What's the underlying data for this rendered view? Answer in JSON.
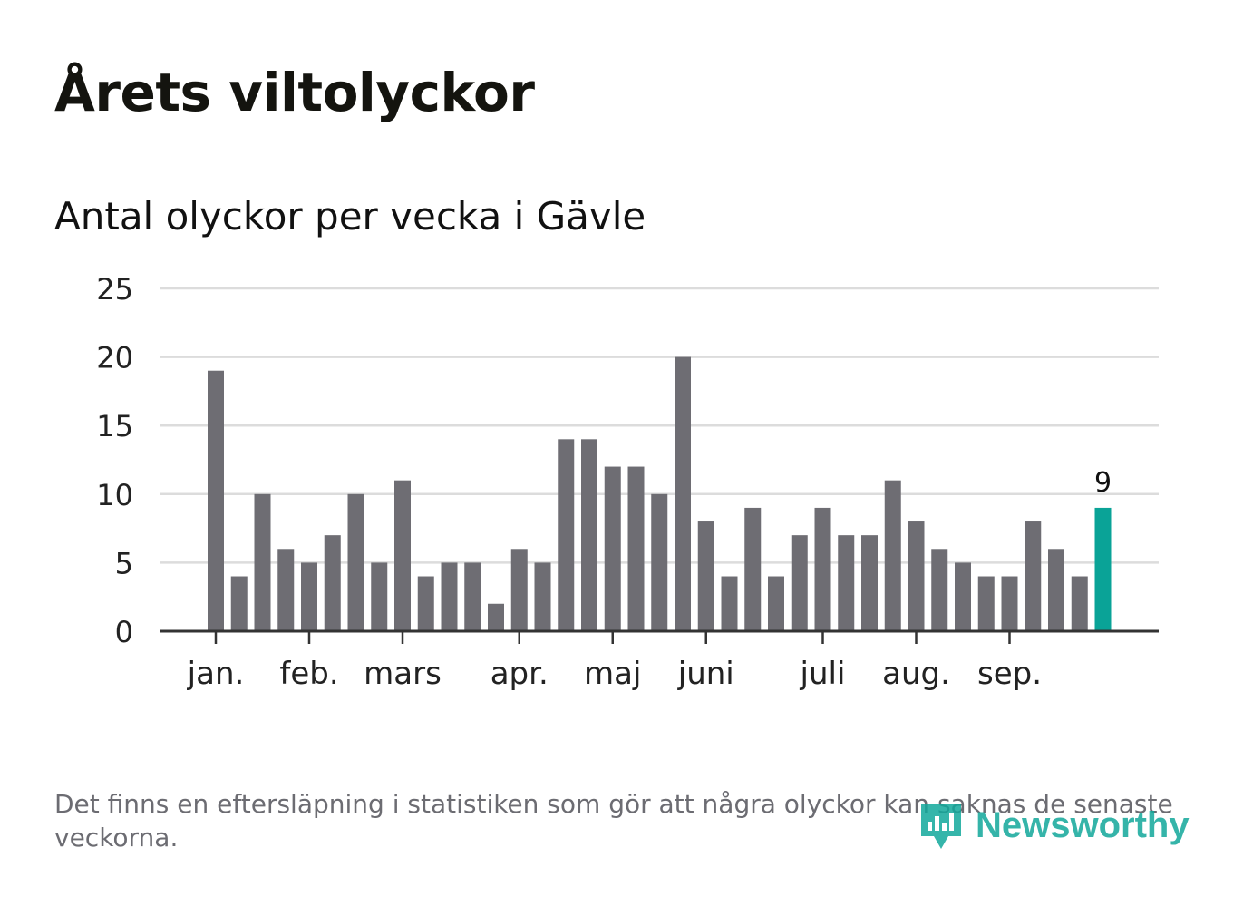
{
  "header": {
    "title": "Årets viltolyckor",
    "subtitle": "Antal olyckor per vecka i Gävle"
  },
  "footer": {
    "note": "Det finns en eftersläpning i statistiken som gör att några olyckor kan saknas de senaste veckorna.",
    "brand": "Newsworthy"
  },
  "colors": {
    "bar": "#6e6d73",
    "highlight": "#0aa397",
    "grid": "#dcdcdc",
    "axis": "#333333",
    "text": "#222222"
  },
  "chart_data": {
    "type": "bar",
    "title": "Antal olyckor per vecka i Gävle",
    "xlabel": "",
    "ylabel": "",
    "ylim": [
      0,
      25
    ],
    "yticks": [
      "0",
      "5",
      "10",
      "15",
      "20",
      "25"
    ],
    "months": [
      {
        "label": "jan.",
        "week": 0
      },
      {
        "label": "feb.",
        "week": 4
      },
      {
        "label": "mars",
        "week": 8
      },
      {
        "label": "apr.",
        "week": 13
      },
      {
        "label": "maj",
        "week": 17
      },
      {
        "label": "juni",
        "week": 21
      },
      {
        "label": "juli",
        "week": 26
      },
      {
        "label": "aug.",
        "week": 30
      },
      {
        "label": "sep.",
        "week": 34
      }
    ],
    "values": [
      19,
      4,
      10,
      6,
      5,
      7,
      10,
      5,
      11,
      4,
      5,
      5,
      2,
      6,
      5,
      14,
      14,
      12,
      12,
      10,
      20,
      8,
      4,
      9,
      4,
      7,
      9,
      7,
      7,
      11,
      8,
      6,
      5,
      4,
      4,
      8,
      6,
      4,
      9
    ],
    "highlight_index": 38,
    "highlight_label": "9"
  }
}
